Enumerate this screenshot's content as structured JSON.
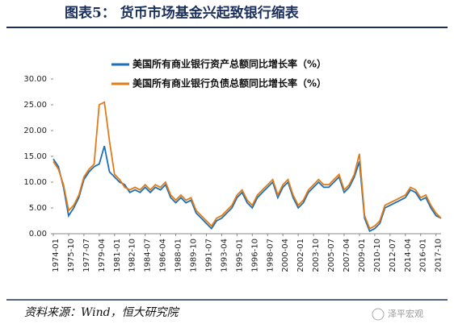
{
  "header": {
    "title": "图表5：  货币市场基金兴起致银行缩表"
  },
  "chart_data": {
    "type": "line",
    "categories": [
      "1974-01",
      null,
      null,
      "1975-10",
      null,
      null,
      "1977-07",
      null,
      null,
      "1979-04",
      null,
      null,
      "1981-01",
      null,
      null,
      "1982-10",
      null,
      null,
      "1984-07",
      null,
      null,
      "1986-04",
      null,
      null,
      "1988-01",
      null,
      null,
      "1989-10",
      null,
      null,
      "1991-07",
      null,
      null,
      "1993-04",
      null,
      null,
      "1995-01",
      null,
      null,
      "1996-10",
      null,
      null,
      "1998-07",
      null,
      null,
      "2000-04",
      null,
      null,
      "2002-01",
      null,
      null,
      "2003-10",
      null,
      null,
      "2005-07",
      null,
      null,
      "2007-04",
      null,
      null,
      "2009-01",
      null,
      null,
      "2010-10",
      null,
      null,
      "2012-07",
      null,
      null,
      "2014-04",
      null,
      null,
      "2016-01",
      null,
      null,
      "2017-10",
      null
    ],
    "series": [
      {
        "name": "美国所有商业银行资产总额同比增长率（%）",
        "color": "#1f6fb4",
        "values": [
          14.5,
          13,
          9,
          3.5,
          5,
          7,
          10.5,
          12,
          13,
          13.5,
          17,
          12,
          11,
          10,
          9.5,
          8,
          8.5,
          8,
          9,
          8,
          9,
          8.5,
          9.5,
          7,
          6,
          7,
          6,
          6.5,
          4,
          3,
          2,
          1,
          2.5,
          3,
          4,
          5,
          7,
          8,
          6,
          5,
          7,
          8,
          9,
          10,
          7,
          9,
          10,
          7,
          5,
          6,
          8,
          9,
          10,
          9,
          9,
          10,
          11,
          8,
          9,
          11,
          14,
          3,
          0.5,
          1,
          2,
          5,
          5.5,
          6,
          6.5,
          7,
          8.5,
          8,
          6.5,
          7,
          5,
          3.5,
          3
        ]
      },
      {
        "name": "美国所有商业银行负债总额同比增长率（%）",
        "color": "#e07b1a",
        "values": [
          14,
          12.5,
          9.5,
          4.5,
          5.5,
          7.5,
          11,
          12.5,
          13.5,
          25,
          25.5,
          18,
          11.5,
          10.5,
          9,
          8.5,
          9,
          8.5,
          9.5,
          8.5,
          9.5,
          9,
          10,
          7.5,
          6.5,
          7.5,
          6.5,
          7,
          4.5,
          3.5,
          2.5,
          1.5,
          3,
          3.5,
          4.5,
          5.5,
          7.5,
          8.5,
          6.5,
          5.5,
          7.5,
          8.5,
          9.5,
          10.5,
          7.5,
          9.5,
          10.5,
          7.5,
          5.5,
          6.5,
          8.5,
          9.5,
          10.5,
          9.5,
          9.5,
          10.5,
          11.5,
          8.5,
          9.5,
          11.5,
          15.5,
          3.5,
          1,
          1.5,
          2.5,
          5.5,
          6,
          6.5,
          7,
          7.5,
          9,
          8.5,
          7,
          7.5,
          5.5,
          4,
          3
        ]
      }
    ],
    "ylim": [
      0,
      30
    ],
    "yticks": [
      {
        "value": 0,
        "label": "0.00"
      },
      {
        "value": 5,
        "label": "5.00"
      },
      {
        "value": 10,
        "label": "10.00"
      },
      {
        "value": 15,
        "label": "15.00"
      },
      {
        "value": 20,
        "label": "20.00"
      },
      {
        "value": 25,
        "label": "25.00"
      },
      {
        "value": 30,
        "label": "30.00"
      }
    ],
    "legend": "top-left"
  },
  "footer": {
    "source": "资料来源：Wind，恒大研究院",
    "watermark": "泽平宏观"
  }
}
